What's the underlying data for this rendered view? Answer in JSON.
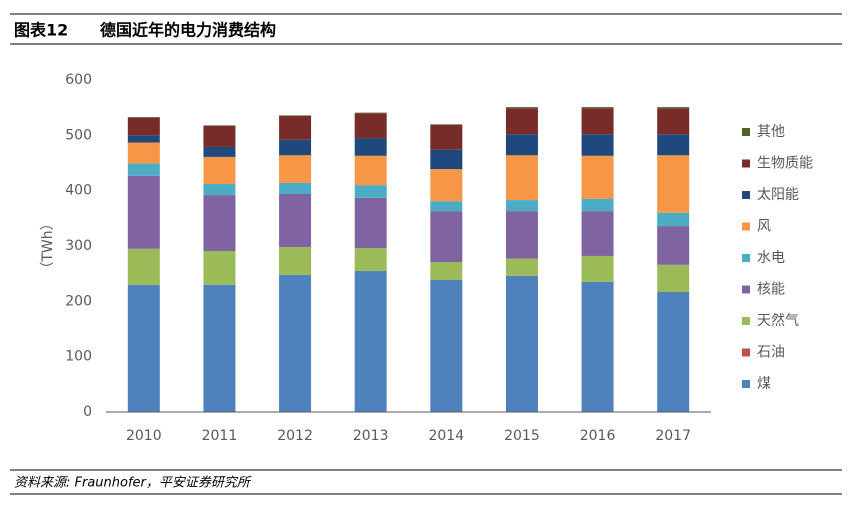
{
  "header": {
    "label": "图表12",
    "title": "德国近年的电力消费结构"
  },
  "source": "资料来源: Fraunhofer，平安证券研究所",
  "chart_data": {
    "type": "stacked_bar",
    "y_label": "（TWh）",
    "categories": [
      "2010",
      "2011",
      "2012",
      "2013",
      "2014",
      "2015",
      "2016",
      "2017"
    ],
    "ylim": [
      0,
      600
    ],
    "yticks": [
      0,
      100,
      200,
      300,
      400,
      500,
      600
    ],
    "grid": false,
    "legend": "right",
    "legend_order": "reverse",
    "series": [
      {
        "name": "煤",
        "color": "#4f81bd",
        "values": [
          230,
          230,
          248,
          255,
          239,
          246,
          235,
          217
        ]
      },
      {
        "name": "石油",
        "color": "#c0504d",
        "values": [
          0,
          0,
          0,
          0,
          0,
          0,
          0,
          0
        ]
      },
      {
        "name": "天然气",
        "color": "#9bbb59",
        "values": [
          65,
          61,
          50,
          41,
          32,
          31,
          47,
          49
        ]
      },
      {
        "name": "核能",
        "color": "#8064a2",
        "values": [
          132,
          101,
          96,
          91,
          92,
          86,
          81,
          70
        ]
      },
      {
        "name": "水电",
        "color": "#4bacc6",
        "values": [
          22,
          20,
          20,
          23,
          18,
          20,
          22,
          24
        ]
      },
      {
        "name": "风",
        "color": "#f79646",
        "values": [
          38,
          49,
          50,
          53,
          58,
          81,
          78,
          104
        ]
      },
      {
        "name": "太阳能",
        "color": "#1f497d",
        "values": [
          13,
          18,
          28,
          32,
          35,
          38,
          39,
          38
        ]
      },
      {
        "name": "生物质能",
        "color": "#772c2a",
        "values": [
          32,
          38,
          43,
          45,
          45,
          47,
          47,
          47
        ]
      },
      {
        "name": "其他",
        "color": "#4f6228",
        "values": [
          1,
          1,
          1,
          1,
          1,
          2,
          2,
          2
        ]
      }
    ]
  }
}
